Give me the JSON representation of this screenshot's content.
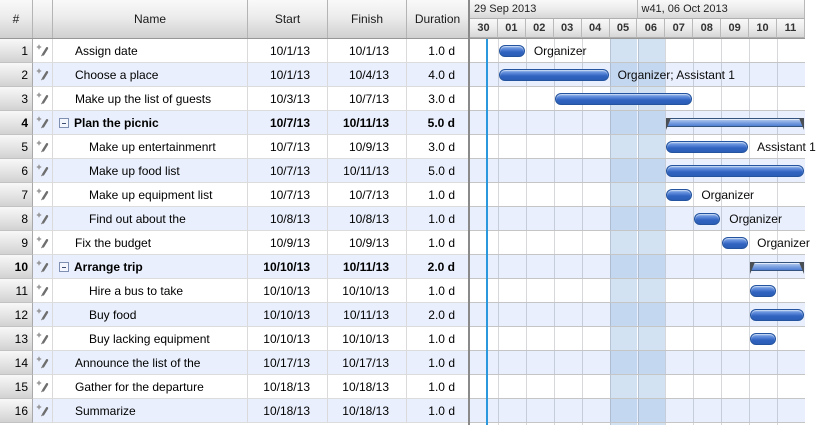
{
  "table": {
    "columns": {
      "number": "#",
      "name": "Name",
      "start": "Start",
      "finish": "Finish",
      "duration": "Duration"
    }
  },
  "timeline": {
    "weeks": [
      {
        "label": "29 Sep 2013",
        "days": 6
      },
      {
        "label": "w41, 06 Oct 2013",
        "days": 6
      }
    ],
    "days": [
      "30",
      "01",
      "02",
      "03",
      "04",
      "05",
      "06",
      "07",
      "08",
      "09",
      "10",
      "11"
    ],
    "weekend_day_indices": [
      5,
      6
    ],
    "today_offset_days": 0.62
  },
  "tasks": [
    {
      "num": "1",
      "name": "Assign date",
      "level": 0,
      "summary": false,
      "start": "10/1/13",
      "finish": "10/1/13",
      "duration": "1.0 d",
      "bar": {
        "start": 1,
        "days": 1,
        "label": "Organizer"
      }
    },
    {
      "num": "2",
      "name": "Choose a place",
      "level": 0,
      "summary": false,
      "start": "10/1/13",
      "finish": "10/4/13",
      "duration": "4.0 d",
      "bar": {
        "start": 1,
        "days": 4,
        "label": "Organizer; Assistant 1"
      }
    },
    {
      "num": "3",
      "name": "Make up the list of guests",
      "level": 0,
      "summary": false,
      "start": "10/3/13",
      "finish": "10/7/13",
      "duration": "3.0 d",
      "bar": {
        "start": 3,
        "days": 5,
        "label": null
      }
    },
    {
      "num": "4",
      "name": "Plan the picnic",
      "level": 0,
      "summary": true,
      "start": "10/7/13",
      "finish": "10/11/13",
      "duration": "5.0 d",
      "bar": {
        "start": 7,
        "days": 5,
        "label": null
      }
    },
    {
      "num": "5",
      "name": "Make up entertainmenrt",
      "level": 1,
      "summary": false,
      "start": "10/7/13",
      "finish": "10/9/13",
      "duration": "3.0 d",
      "bar": {
        "start": 7,
        "days": 3,
        "label": "Assistant 1"
      }
    },
    {
      "num": "6",
      "name": "Make up food list",
      "level": 1,
      "summary": false,
      "start": "10/7/13",
      "finish": "10/11/13",
      "duration": "5.0 d",
      "bar": {
        "start": 7,
        "days": 5,
        "label": null
      }
    },
    {
      "num": "7",
      "name": "Make up equipment list",
      "level": 1,
      "summary": false,
      "start": "10/7/13",
      "finish": "10/7/13",
      "duration": "1.0 d",
      "bar": {
        "start": 7,
        "days": 1,
        "label": "Organizer"
      }
    },
    {
      "num": "8",
      "name": "Find out about the",
      "level": 1,
      "summary": false,
      "start": "10/8/13",
      "finish": "10/8/13",
      "duration": "1.0 d",
      "bar": {
        "start": 8,
        "days": 1,
        "label": "Organizer"
      }
    },
    {
      "num": "9",
      "name": "Fix the budget",
      "level": 0,
      "summary": false,
      "start": "10/9/13",
      "finish": "10/9/13",
      "duration": "1.0 d",
      "bar": {
        "start": 9,
        "days": 1,
        "label": "Organizer"
      }
    },
    {
      "num": "10",
      "name": "Arrange trip",
      "level": 0,
      "summary": true,
      "start": "10/10/13",
      "finish": "10/11/13",
      "duration": "2.0 d",
      "bar": {
        "start": 10,
        "days": 2,
        "label": null
      }
    },
    {
      "num": "11",
      "name": "Hire a bus to take",
      "level": 1,
      "summary": false,
      "start": "10/10/13",
      "finish": "10/10/13",
      "duration": "1.0 d",
      "bar": {
        "start": 10,
        "days": 1,
        "label": null
      }
    },
    {
      "num": "12",
      "name": "Buy food",
      "level": 1,
      "summary": false,
      "start": "10/10/13",
      "finish": "10/11/13",
      "duration": "2.0 d",
      "bar": {
        "start": 10,
        "days": 2,
        "label": null
      }
    },
    {
      "num": "13",
      "name": "Buy lacking equipment",
      "level": 1,
      "summary": false,
      "start": "10/10/13",
      "finish": "10/10/13",
      "duration": "1.0 d",
      "bar": {
        "start": 10,
        "days": 1,
        "label": null
      }
    },
    {
      "num": "14",
      "name": "Announce the list of the",
      "level": 0,
      "summary": false,
      "start": "10/17/13",
      "finish": "10/17/13",
      "duration": "1.0 d",
      "bar": null
    },
    {
      "num": "15",
      "name": "Gather for the departure",
      "level": 0,
      "summary": false,
      "start": "10/18/13",
      "finish": "10/18/13",
      "duration": "1.0 d",
      "bar": null
    },
    {
      "num": "16",
      "name": "Summarize",
      "level": 0,
      "summary": false,
      "start": "10/18/13",
      "finish": "10/18/13",
      "duration": "1.0 d",
      "bar": null
    }
  ],
  "colors": {
    "bar_fill": "#3b6cc5",
    "bar_border": "#24549f",
    "alt_row": "#e9effc",
    "weekend_band": "#cddff2",
    "today_line": "#2b97dd"
  }
}
